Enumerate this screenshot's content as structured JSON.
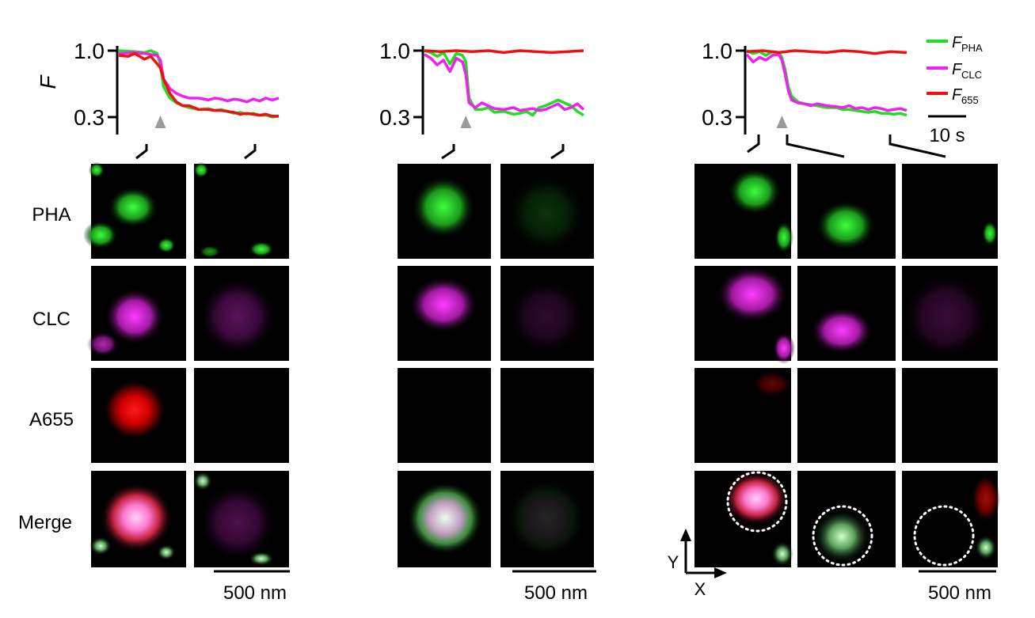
{
  "figure": {
    "y_axis_label": "F",
    "y_ticks": [
      "1.0",
      "0.3"
    ],
    "row_labels": [
      "PHA",
      "CLC",
      "A655",
      "Merge"
    ],
    "legend": [
      {
        "prefix": "F",
        "sub": "PHA",
        "color": "#22dd22"
      },
      {
        "prefix": "F",
        "sub": "CLC",
        "color": "#ee22ee"
      },
      {
        "prefix": "F",
        "sub": "655",
        "color": "#ee1111"
      }
    ],
    "time_scale_label": "10 s",
    "space_scale_label": "500 nm",
    "axis_x_label": "X",
    "axis_y_label": "Y",
    "colors": {
      "pha": "#22dd22",
      "clc": "#ee22ee",
      "a655": "#ee1111",
      "event_marker": "#9a9a9a",
      "tile_background": "#000000"
    }
  },
  "chart_data": [
    {
      "type": "line",
      "panel": "left",
      "ylabel": "F",
      "yticks": [
        1.0,
        0.3
      ],
      "ylim": [
        0.25,
        1.05
      ],
      "xlim": [
        0,
        50
      ],
      "event_marker_time": 13,
      "series": [
        {
          "name": "F_PHA",
          "x": [
            0,
            5,
            8,
            10,
            12,
            13,
            14,
            16,
            18,
            20,
            22,
            25,
            28,
            30,
            32,
            34,
            36,
            38,
            40,
            42,
            44,
            46,
            48,
            50
          ],
          "y": [
            1.0,
            0.99,
            0.98,
            1.0,
            0.97,
            0.85,
            0.62,
            0.5,
            0.45,
            0.42,
            0.4,
            0.38,
            0.39,
            0.37,
            0.38,
            0.36,
            0.34,
            0.35,
            0.33,
            0.34,
            0.32,
            0.32,
            0.3,
            0.31
          ]
        },
        {
          "name": "F_CLC",
          "x": [
            0,
            5,
            8,
            10,
            12,
            13,
            14,
            16,
            18,
            20,
            22,
            25,
            28,
            30,
            32,
            34,
            36,
            38,
            40,
            42,
            44,
            46,
            48,
            50
          ],
          "y": [
            0.97,
            0.98,
            0.97,
            0.96,
            0.95,
            0.9,
            0.7,
            0.6,
            0.55,
            0.52,
            0.5,
            0.5,
            0.48,
            0.5,
            0.49,
            0.47,
            0.49,
            0.48,
            0.46,
            0.49,
            0.47,
            0.5,
            0.48,
            0.5
          ]
        },
        {
          "name": "F_655",
          "x": [
            0,
            3,
            5,
            8,
            10,
            12,
            13,
            14,
            16,
            18,
            20,
            22,
            25,
            28,
            30,
            32,
            34,
            36,
            38,
            40,
            42,
            44,
            46,
            48,
            50
          ],
          "y": [
            0.95,
            0.94,
            0.97,
            0.91,
            0.94,
            0.86,
            0.82,
            0.7,
            0.55,
            0.46,
            0.42,
            0.42,
            0.38,
            0.38,
            0.37,
            0.37,
            0.36,
            0.35,
            0.33,
            0.34,
            0.33,
            0.32,
            0.33,
            0.31,
            0.31
          ]
        }
      ]
    },
    {
      "type": "line",
      "panel": "middle",
      "ylabel": "F",
      "yticks": [
        1.0,
        0.3
      ],
      "ylim": [
        0.25,
        1.05
      ],
      "xlim": [
        0,
        50
      ],
      "event_marker_time": 13,
      "series": [
        {
          "name": "F_PHA",
          "x": [
            0,
            2,
            4,
            6,
            8,
            10,
            12,
            13,
            14,
            16,
            18,
            20,
            22,
            25,
            28,
            30,
            32,
            34,
            36,
            38,
            40,
            42,
            44,
            46,
            48,
            50
          ],
          "y": [
            1.0,
            0.98,
            0.94,
            0.98,
            0.86,
            0.97,
            0.95,
            0.88,
            0.5,
            0.38,
            0.38,
            0.4,
            0.35,
            0.36,
            0.33,
            0.34,
            0.36,
            0.32,
            0.4,
            0.42,
            0.45,
            0.48,
            0.45,
            0.42,
            0.36,
            0.32
          ]
        },
        {
          "name": "F_CLC",
          "x": [
            0,
            2,
            4,
            6,
            8,
            10,
            12,
            13,
            14,
            16,
            18,
            20,
            22,
            25,
            28,
            30,
            32,
            34,
            36,
            38,
            40,
            42,
            44,
            46,
            48,
            50
          ],
          "y": [
            0.96,
            0.92,
            0.85,
            0.9,
            0.78,
            0.92,
            0.88,
            0.75,
            0.45,
            0.4,
            0.45,
            0.42,
            0.39,
            0.38,
            0.4,
            0.37,
            0.38,
            0.39,
            0.37,
            0.38,
            0.41,
            0.44,
            0.38,
            0.4,
            0.44,
            0.38
          ]
        },
        {
          "name": "F_655",
          "x": [
            0,
            5,
            10,
            15,
            20,
            25,
            30,
            35,
            40,
            45,
            50
          ],
          "y": [
            1.0,
            0.99,
            1.0,
            0.99,
            1.0,
            0.98,
            1.0,
            0.99,
            0.98,
            0.99,
            1.0
          ]
        }
      ]
    },
    {
      "type": "line",
      "panel": "right",
      "ylabel": "F",
      "yticks": [
        1.0,
        0.3
      ],
      "ylim": [
        0.25,
        1.05
      ],
      "xlim": [
        0,
        50
      ],
      "event_marker_time": 11,
      "series": [
        {
          "name": "F_PHA",
          "x": [
            0,
            2,
            4,
            6,
            8,
            10,
            11,
            12,
            13,
            14,
            16,
            18,
            20,
            22,
            25,
            28,
            30,
            32,
            34,
            36,
            38,
            40,
            42,
            44,
            46,
            48,
            50
          ],
          "y": [
            1.0,
            0.97,
            0.99,
            0.95,
            0.99,
            0.98,
            0.93,
            0.8,
            0.62,
            0.52,
            0.46,
            0.44,
            0.43,
            0.42,
            0.4,
            0.4,
            0.38,
            0.38,
            0.37,
            0.36,
            0.35,
            0.36,
            0.34,
            0.34,
            0.33,
            0.34,
            0.32
          ]
        },
        {
          "name": "F_CLC",
          "x": [
            0,
            2,
            4,
            6,
            8,
            10,
            11,
            12,
            13,
            14,
            16,
            18,
            20,
            22,
            25,
            28,
            30,
            32,
            34,
            36,
            38,
            40,
            42,
            44,
            46,
            48,
            50
          ],
          "y": [
            0.96,
            0.88,
            0.93,
            0.9,
            0.95,
            0.96,
            0.9,
            0.75,
            0.58,
            0.48,
            0.45,
            0.44,
            0.42,
            0.44,
            0.42,
            0.41,
            0.4,
            0.42,
            0.39,
            0.4,
            0.38,
            0.4,
            0.39,
            0.37,
            0.38,
            0.39,
            0.37
          ]
        },
        {
          "name": "F_655",
          "x": [
            0,
            5,
            10,
            15,
            20,
            25,
            30,
            35,
            40,
            45,
            50
          ],
          "y": [
            0.99,
            1.0,
            0.98,
            1.0,
            0.99,
            0.98,
            1.0,
            0.99,
            0.97,
            0.99,
            0.98
          ]
        }
      ]
    }
  ]
}
